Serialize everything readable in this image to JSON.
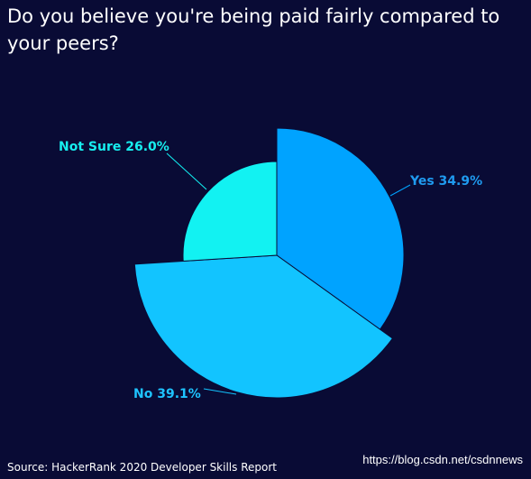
{
  "title": "Do you believe you're being paid fairly compared to your peers?",
  "source": "Source: HackerRank 2020 Developer Skills Report",
  "watermark": "https://blog.csdn.net/csdnnews",
  "chart_data": {
    "type": "pie",
    "title": "Do you believe you're being paid fairly compared to your peers?",
    "slices": [
      {
        "label": "Yes",
        "value": 34.9,
        "display": "Yes 34.9%",
        "color": "#00a3ff",
        "label_color": "#1f9bf0",
        "radius_level": "large"
      },
      {
        "label": "No",
        "value": 39.1,
        "display": "No 39.1%",
        "color": "#12c4ff",
        "label_color": "#1ec3ff",
        "radius_level": "medium"
      },
      {
        "label": "Not Sure",
        "value": 26.0,
        "display": "Not Sure 26.0%",
        "color": "#12f2f2",
        "label_color": "#17eeef",
        "radius_level": "small"
      }
    ]
  },
  "colors": {
    "background": "#090b35",
    "text": "#ffffff"
  }
}
